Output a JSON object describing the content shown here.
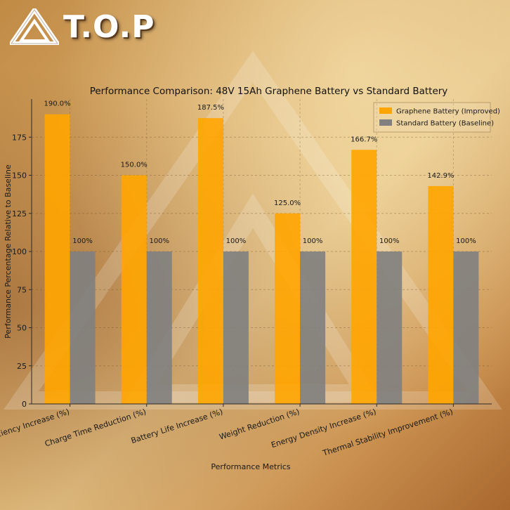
{
  "logo": {
    "text": "T.O.P"
  },
  "chart_data": {
    "type": "bar",
    "title": "Performance Comparison: 48V 15Ah Graphene Battery vs Standard Battery",
    "xlabel": "Performance Metrics",
    "ylabel": "Performance Percentage Relative to Baseline",
    "ylim": [
      0,
      200
    ],
    "yticks": [
      0,
      25,
      50,
      75,
      100,
      125,
      150,
      175
    ],
    "grid": true,
    "legend_position": "top-right",
    "categories": [
      "Efficiency Increase (%)",
      "Charge Time Reduction (%)",
      "Battery Life Increase (%)",
      "Weight Reduction (%)",
      "Energy Density Increase (%)",
      "Thermal Stability Improvement (%)"
    ],
    "series": [
      {
        "name": "Graphene Battery (Improved)",
        "color": "#ffa500",
        "values": [
          190.0,
          150.0,
          187.5,
          125.0,
          166.7,
          142.9
        ],
        "labels": [
          "190.0%",
          "150.0%",
          "187.5%",
          "125.0%",
          "166.7%",
          "142.9%"
        ]
      },
      {
        "name": "Standard Battery (Baseline)",
        "color": "#808080",
        "values": [
          100,
          100,
          100,
          100,
          100,
          100
        ],
        "labels": [
          "100%",
          "100%",
          "100%",
          "100%",
          "100%",
          "100%"
        ]
      }
    ]
  }
}
